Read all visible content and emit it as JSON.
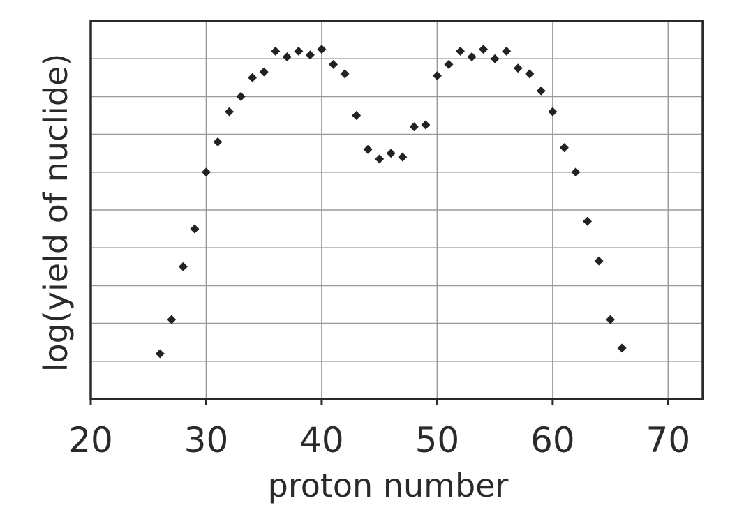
{
  "chart_data": {
    "type": "scatter",
    "xlabel": "proton number",
    "ylabel": "log(yield of nuclide)",
    "xlim": [
      20,
      73
    ],
    "x_ticks": [
      "20",
      "30",
      "40",
      "50",
      "60",
      "70"
    ],
    "ylim": [
      0,
      10
    ],
    "y_ticks_labeled": false,
    "grid": true,
    "marker": "diamond",
    "marker_color": "#222222",
    "series": [
      {
        "points": [
          [
            26,
            1.2
          ],
          [
            27,
            2.1
          ],
          [
            28,
            3.5
          ],
          [
            29,
            4.5
          ],
          [
            30,
            6.0
          ],
          [
            31,
            6.8
          ],
          [
            32,
            7.6
          ],
          [
            33,
            8.0
          ],
          [
            34,
            8.5
          ],
          [
            35,
            8.65
          ],
          [
            36,
            9.2
          ],
          [
            37,
            9.05
          ],
          [
            38,
            9.2
          ],
          [
            39,
            9.1
          ],
          [
            40,
            9.25
          ],
          [
            41,
            8.85
          ],
          [
            42,
            8.6
          ],
          [
            43,
            7.5
          ],
          [
            44,
            6.6
          ],
          [
            45,
            6.35
          ],
          [
            46,
            6.5
          ],
          [
            47,
            6.4
          ],
          [
            48,
            7.2
          ],
          [
            49,
            7.25
          ],
          [
            50,
            8.55
          ],
          [
            51,
            8.85
          ],
          [
            52,
            9.2
          ],
          [
            53,
            9.05
          ],
          [
            54,
            9.25
          ],
          [
            55,
            9.0
          ],
          [
            56,
            9.2
          ],
          [
            57,
            8.75
          ],
          [
            58,
            8.6
          ],
          [
            59,
            8.15
          ],
          [
            60,
            7.6
          ],
          [
            61,
            6.65
          ],
          [
            62,
            6.0
          ],
          [
            63,
            4.7
          ],
          [
            64,
            3.65
          ],
          [
            65,
            2.1
          ],
          [
            66,
            1.35
          ]
        ]
      }
    ]
  }
}
